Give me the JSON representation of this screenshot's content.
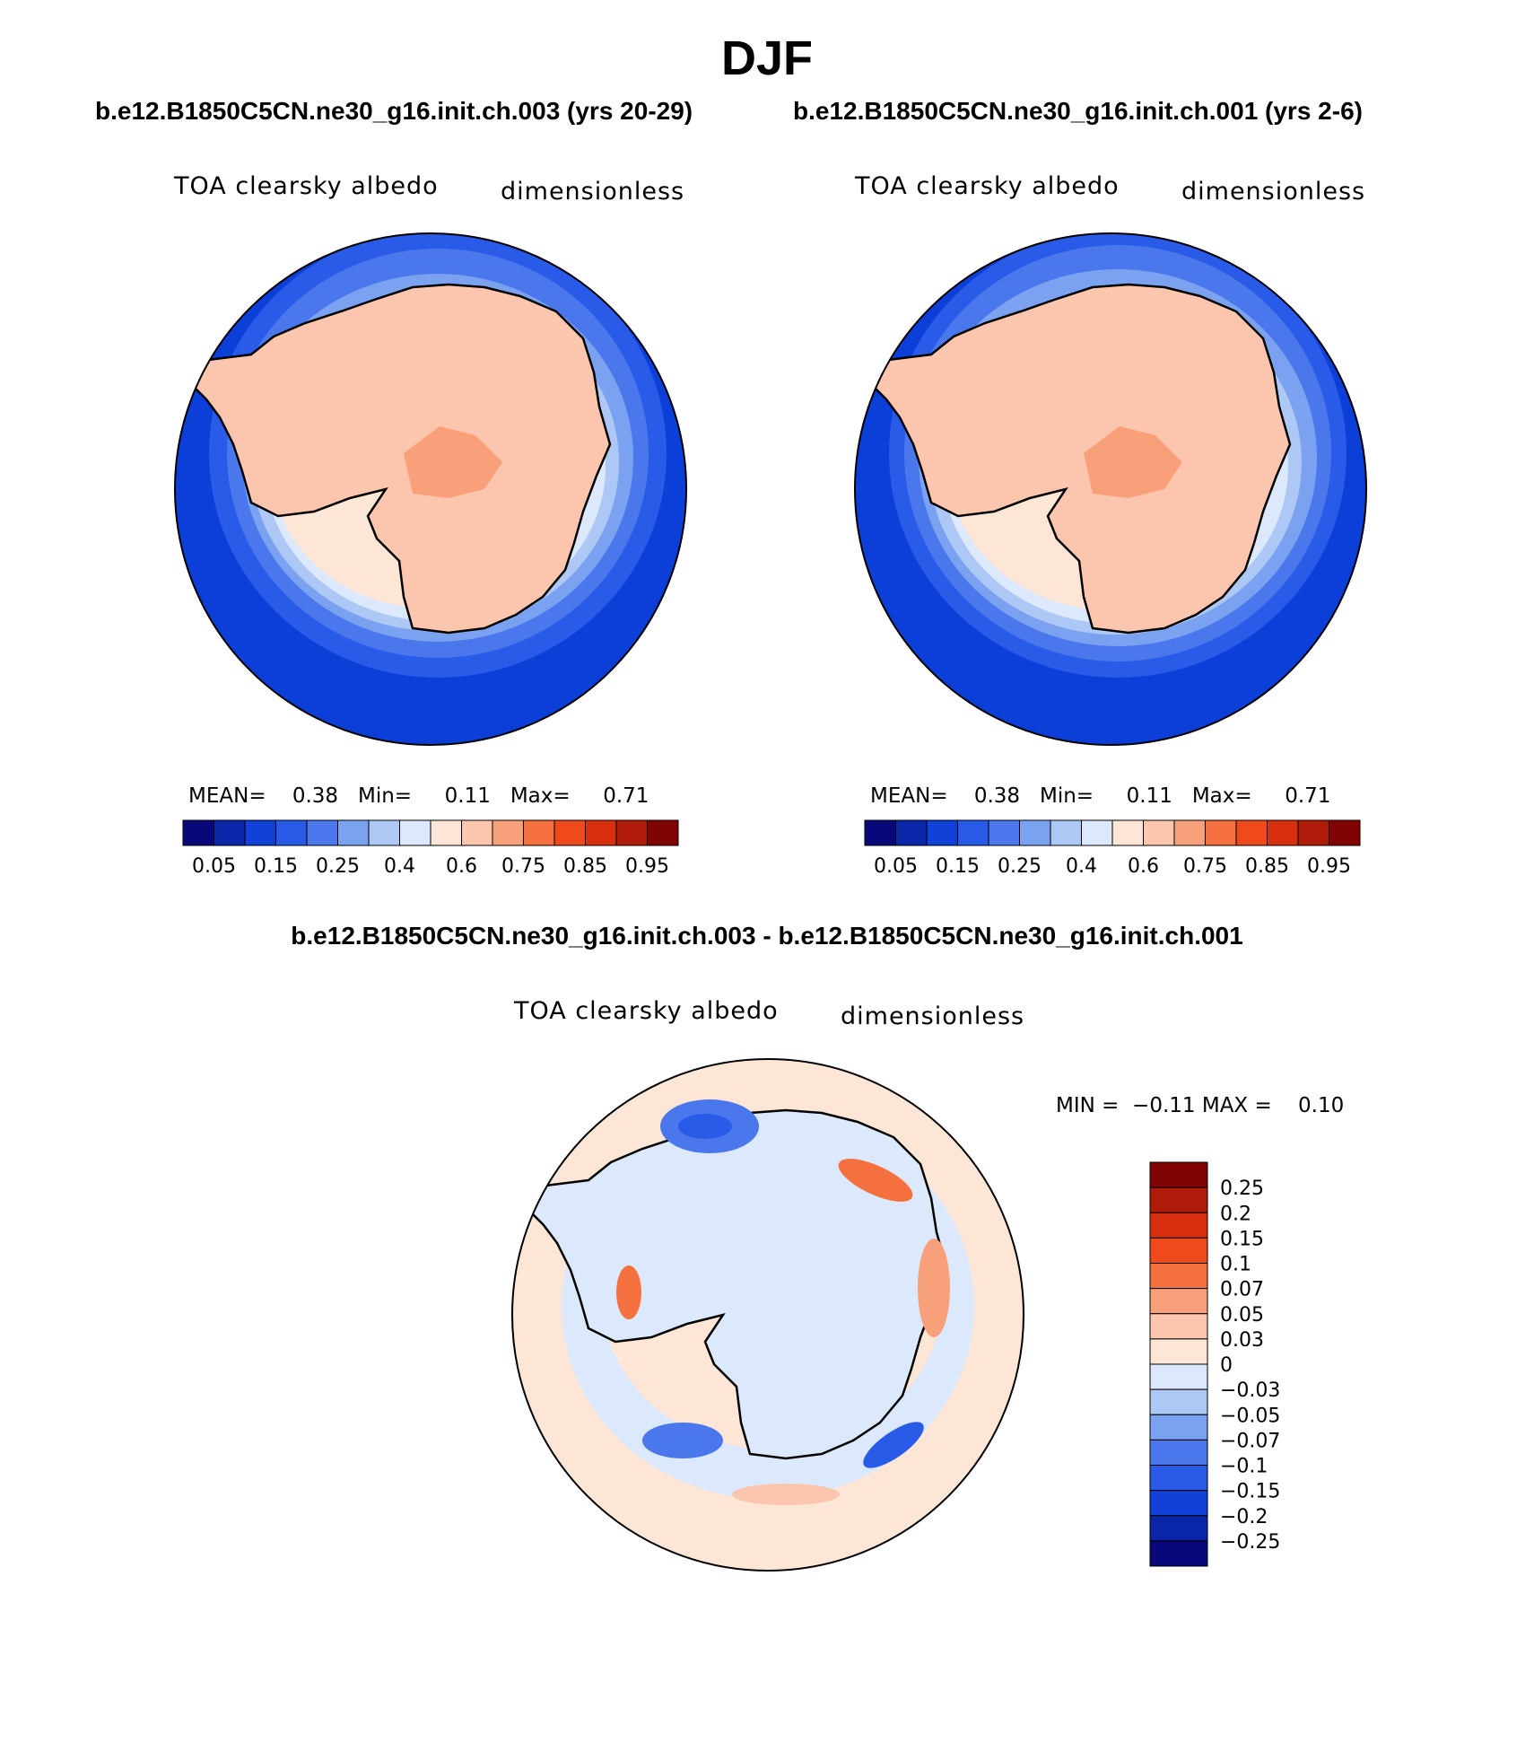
{
  "page": {
    "title": "DJF",
    "left_case": "b.e12.B1850C5CN.ne30_g16.init.ch.003 (yrs 20-29)",
    "right_case": "b.e12.B1850C5CN.ne30_g16.init.ch.001 (yrs 2-6)",
    "diff_case": "b.e12.B1850C5CN.ne30_g16.init.ch.003 - b.e12.B1850C5CN.ne30_g16.init.ch.001"
  },
  "panels": [
    {
      "variable": "TOA clearsky albedo",
      "units": "dimensionless",
      "mean_label": "MEAN=",
      "mean_value": "0.38",
      "min_label": "Min=",
      "min_value": "0.11",
      "max_label": "Max=",
      "max_value": "0.71"
    },
    {
      "variable": "TOA clearsky albedo",
      "units": "dimensionless",
      "mean_label": "MEAN=",
      "mean_value": "0.38",
      "min_label": "Min=",
      "min_value": "0.11",
      "max_label": "Max=",
      "max_value": "0.71"
    }
  ],
  "diff_panel": {
    "variable": "TOA clearsky albedo",
    "units": "dimensionless",
    "min_label": "MIN =",
    "min_value": "−0.11",
    "max_label": "MAX =",
    "max_value": "0.10"
  },
  "colorbar_main": {
    "colors": [
      "#08087a",
      "#0a26a8",
      "#1040d8",
      "#2a5ae8",
      "#4a78ec",
      "#7aa2f0",
      "#aec8f6",
      "#dce8fc",
      "#fde6d6",
      "#fcc6ae",
      "#f8a07a",
      "#f4703e",
      "#ee4a1c",
      "#d8300e",
      "#b01a08",
      "#800404"
    ],
    "ticks": [
      "0.05",
      "0.15",
      "0.25",
      "0.4",
      "0.6",
      "0.75",
      "0.85",
      "0.95"
    ]
  },
  "colorbar_diff": {
    "colors_top_to_bottom": [
      "#800404",
      "#b01a08",
      "#d8300e",
      "#ee4a1c",
      "#f4703e",
      "#f8a07a",
      "#fcc6ae",
      "#fde6d6",
      "#dce8fc",
      "#aec8f6",
      "#7aa2f0",
      "#4a78ec",
      "#2a5ae8",
      "#1040d8",
      "#0a26a8",
      "#08087a"
    ],
    "ticks": [
      "0.25",
      "0.2",
      "0.15",
      "0.1",
      "0.07",
      "0.05",
      "0.03",
      "0",
      "−0.03",
      "−0.05",
      "−0.07",
      "−0.1",
      "−0.15",
      "−0.2",
      "−0.25"
    ]
  },
  "map_colors": {
    "ocean_far": "#0b3fd8",
    "ring1": "#2a5ae8",
    "ring2": "#4a78ec",
    "ring3": "#7aa2f0",
    "ring4": "#aec8f6",
    "ring5": "#dce8fc",
    "ice": "#fde6d6",
    "land": "#fcc6ae",
    "plateau": "#f8a07a",
    "diff_bg": "#dce8fc",
    "diff_pos": "#fde6d6"
  }
}
